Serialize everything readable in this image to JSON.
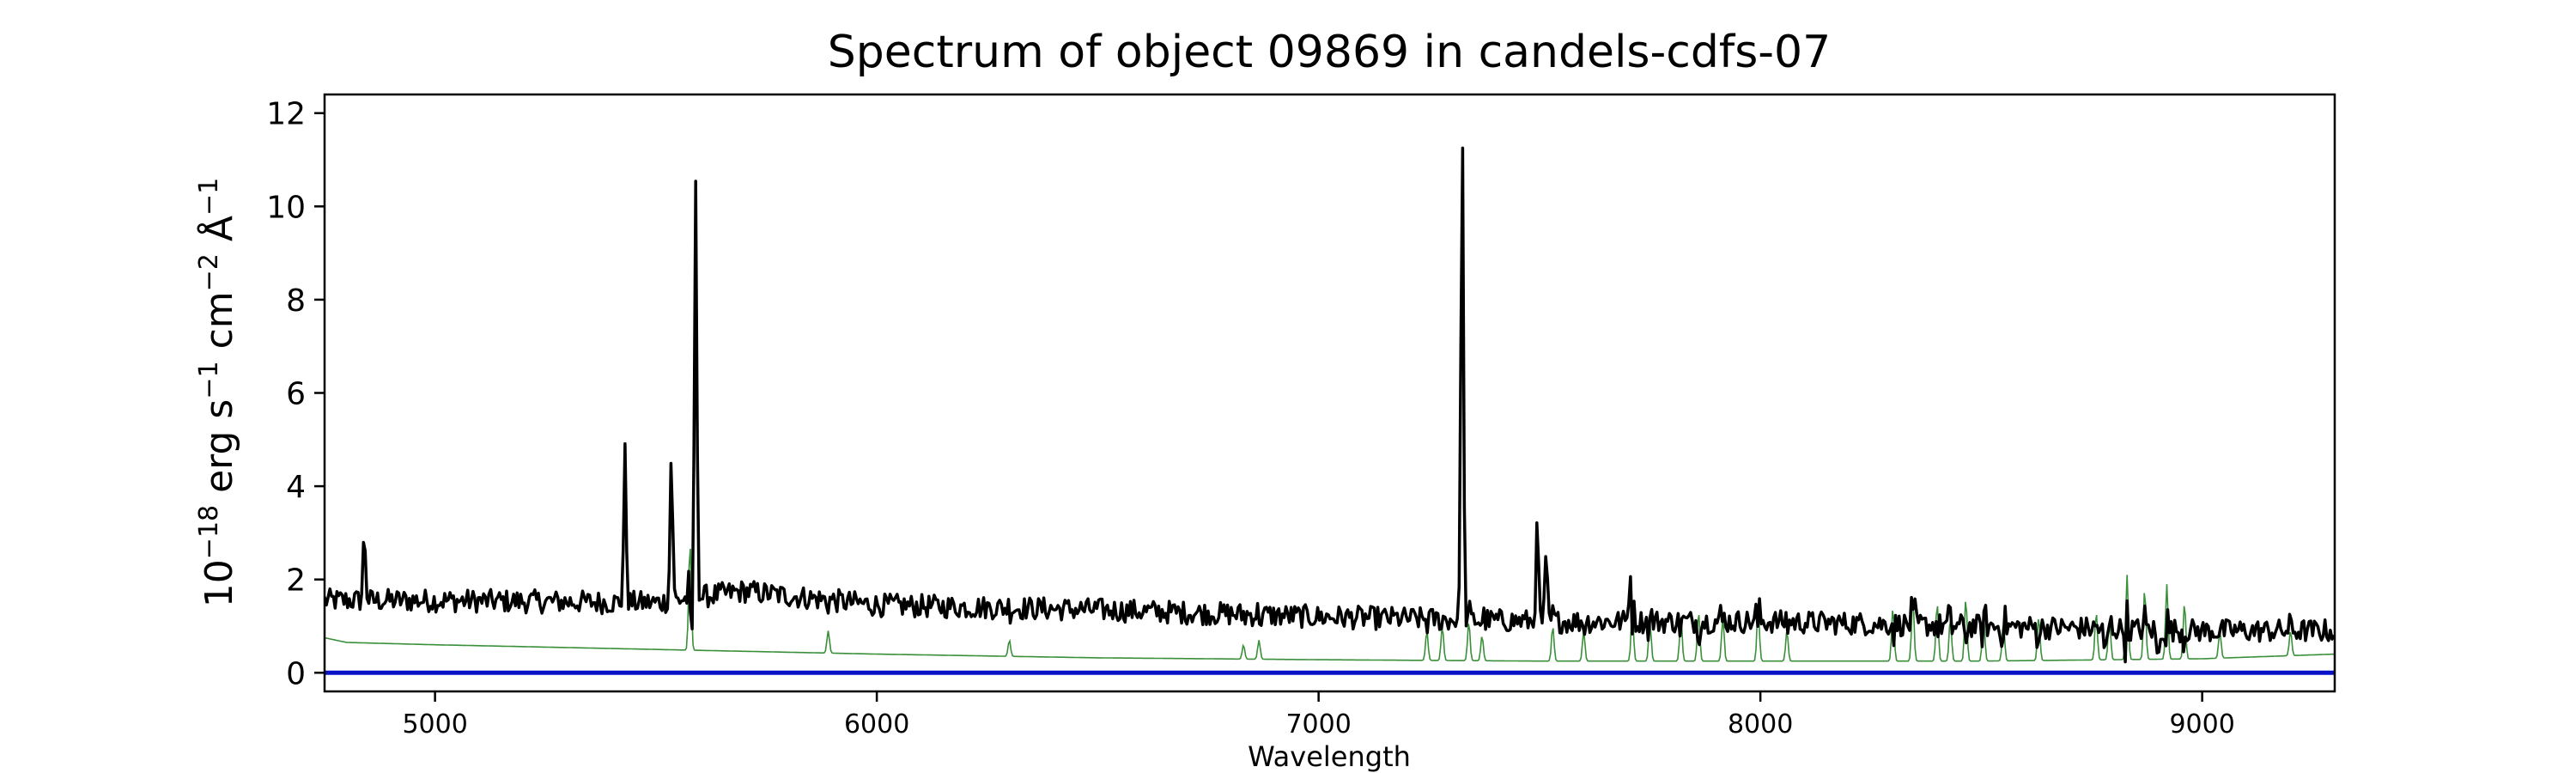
{
  "chart_data": {
    "type": "line",
    "title": "Spectrum of object 09869 in candels-cdfs-07",
    "xlabel": "Wavelength",
    "ylabel_parts": [
      "10",
      "−18",
      " erg s",
      "−1",
      " cm",
      "−2",
      " Å",
      "−1"
    ],
    "xlim": [
      4750,
      9300
    ],
    "ylim": [
      -0.4,
      12.4
    ],
    "xticks": [
      5000,
      6000,
      7000,
      8000,
      9000
    ],
    "yticks": [
      0,
      2,
      4,
      6,
      8,
      10,
      12
    ],
    "grid": false,
    "colors": {
      "flux": "#000000",
      "sky": "#3a8f3a",
      "zero": "#0a12c8"
    },
    "series": [
      {
        "key": "flux",
        "continuum": [
          [
            4750,
            1.55
          ],
          [
            5000,
            1.55
          ],
          [
            5500,
            1.5
          ],
          [
            5700,
            1.75
          ],
          [
            6000,
            1.45
          ],
          [
            6500,
            1.35
          ],
          [
            7000,
            1.2
          ],
          [
            7500,
            1.1
          ],
          [
            8000,
            1.1
          ],
          [
            8500,
            1.0
          ],
          [
            9000,
            0.9
          ],
          [
            9300,
            0.9
          ]
        ],
        "emission_lines": [
          {
            "x": 4840,
            "peak": 3.0
          },
          {
            "x": 5430,
            "peak": 4.7
          },
          {
            "x": 5535,
            "peak": 4.7
          },
          {
            "x": 5590,
            "peak": 10.35
          },
          {
            "x": 7325,
            "peak": 11.8
          },
          {
            "x": 7495,
            "peak": 3.1
          },
          {
            "x": 7515,
            "peak": 2.4
          },
          {
            "x": 7705,
            "peak": 2.1
          }
        ],
        "absorption_lines": [
          {
            "x": 5580,
            "trough": 0.3
          },
          {
            "x": 8780,
            "trough": 0.35
          },
          {
            "x": 8900,
            "trough": 0.2
          }
        ]
      },
      {
        "key": "sky",
        "continuum": [
          [
            4750,
            0.75
          ],
          [
            4800,
            0.65
          ],
          [
            5000,
            0.6
          ],
          [
            5500,
            0.5
          ],
          [
            6000,
            0.4
          ],
          [
            6500,
            0.32
          ],
          [
            7000,
            0.28
          ],
          [
            7500,
            0.25
          ],
          [
            8000,
            0.25
          ],
          [
            8500,
            0.25
          ],
          [
            9000,
            0.3
          ],
          [
            9300,
            0.4
          ]
        ],
        "lines": [
          {
            "x": 5577,
            "peak": 2.8
          },
          {
            "x": 5890,
            "peak": 0.9
          },
          {
            "x": 6300,
            "peak": 0.7
          },
          {
            "x": 6830,
            "peak": 0.6
          },
          {
            "x": 6865,
            "peak": 0.7
          },
          {
            "x": 7245,
            "peak": 0.9
          },
          {
            "x": 7280,
            "peak": 1.0
          },
          {
            "x": 7340,
            "peak": 1.1
          },
          {
            "x": 7370,
            "peak": 0.8
          },
          {
            "x": 7530,
            "peak": 1.0
          },
          {
            "x": 7600,
            "peak": 0.9
          },
          {
            "x": 7710,
            "peak": 1.3
          },
          {
            "x": 7750,
            "peak": 1.1
          },
          {
            "x": 7820,
            "peak": 1.2
          },
          {
            "x": 7860,
            "peak": 1.3
          },
          {
            "x": 7915,
            "peak": 1.2
          },
          {
            "x": 7995,
            "peak": 1.4
          },
          {
            "x": 8060,
            "peak": 0.9
          },
          {
            "x": 8300,
            "peak": 1.4
          },
          {
            "x": 8345,
            "peak": 1.6
          },
          {
            "x": 8400,
            "peak": 1.5
          },
          {
            "x": 8430,
            "peak": 1.2
          },
          {
            "x": 8465,
            "peak": 1.6
          },
          {
            "x": 8505,
            "peak": 1.3
          },
          {
            "x": 8550,
            "peak": 1.1
          },
          {
            "x": 8630,
            "peak": 1.2
          },
          {
            "x": 8760,
            "peak": 1.3
          },
          {
            "x": 8790,
            "peak": 1.2
          },
          {
            "x": 8830,
            "peak": 2.1
          },
          {
            "x": 8870,
            "peak": 1.8
          },
          {
            "x": 8920,
            "peak": 1.9
          },
          {
            "x": 8960,
            "peak": 1.5
          },
          {
            "x": 9040,
            "peak": 0.9
          },
          {
            "x": 9200,
            "peak": 0.9
          }
        ]
      },
      {
        "key": "zero",
        "y": 0
      }
    ]
  }
}
